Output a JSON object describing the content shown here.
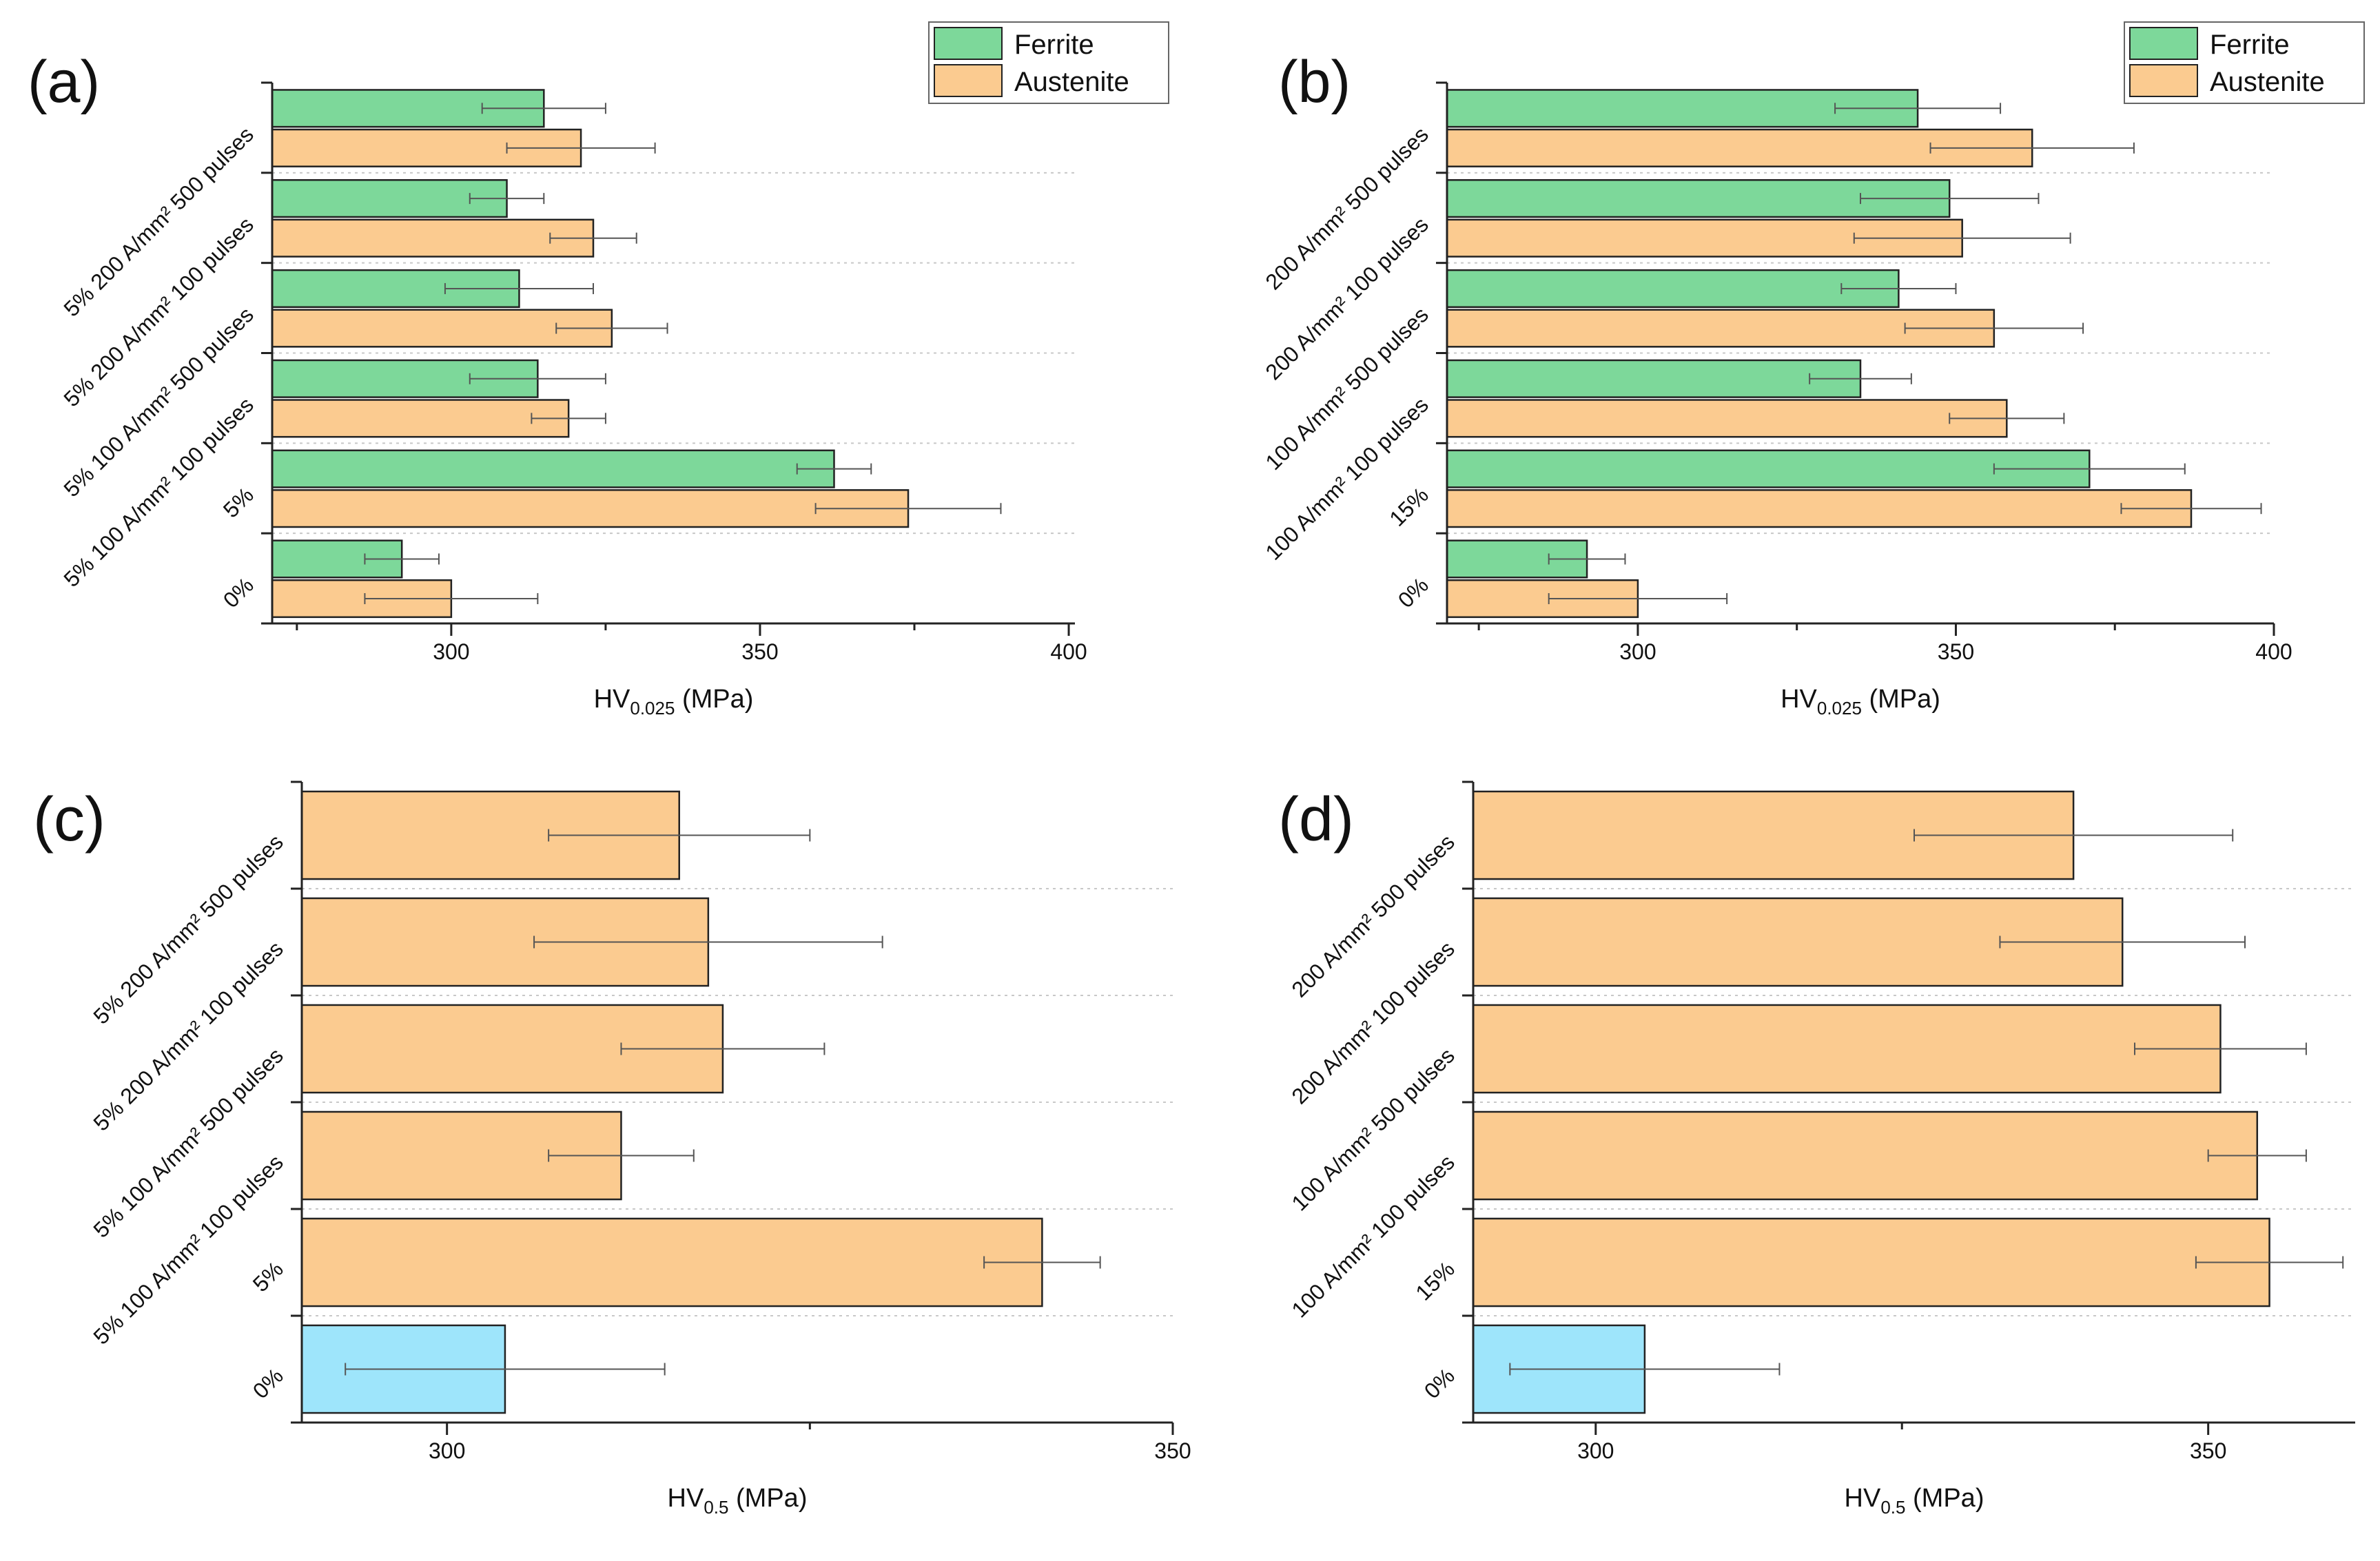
{
  "figure": {
    "legend": {
      "ferrite": "Ferrite",
      "austenite": "Austenite"
    },
    "colors": {
      "ferrite": "#7dd89a",
      "austenite": "#fbcb90",
      "baseline": "#9ee5fb",
      "axis": "#222222",
      "grid": "#c8c8c8",
      "error": "#555555"
    }
  },
  "chart_data": [
    {
      "panel": "(a)",
      "type": "bar",
      "orientation": "horizontal",
      "title": "",
      "xlabel_main": "HV",
      "xlabel_sub": "0.025",
      "xlabel_unit": " (MPa)",
      "xlim": [
        271,
        401
      ],
      "xticks": [
        300,
        350,
        400
      ],
      "grid": "dotted separators between groups",
      "legend_position": "top-right",
      "categories": [
        "0%",
        "5%",
        "5% 100 A/mm² 100 pulses",
        "5% 100 A/mm² 500 pulses",
        "5% 200 A/mm² 100 pulses",
        "5% 200 A/mm² 500 pulses"
      ],
      "series": [
        {
          "name": "Ferrite",
          "color_key": "ferrite",
          "values": [
            292,
            362,
            314,
            311,
            309,
            315
          ],
          "errors": [
            6,
            6,
            11,
            12,
            6,
            10
          ]
        },
        {
          "name": "Austenite",
          "color_key": "austenite",
          "values": [
            300,
            374,
            319,
            326,
            323,
            321
          ],
          "errors": [
            14,
            15,
            6,
            9,
            7,
            12
          ]
        }
      ]
    },
    {
      "panel": "(b)",
      "type": "bar",
      "orientation": "horizontal",
      "title": "",
      "xlabel_main": "HV",
      "xlabel_sub": "0.025",
      "xlabel_unit": " (MPa)",
      "xlim": [
        270,
        400
      ],
      "xticks": [
        300,
        350,
        400
      ],
      "grid": "dotted separators between groups",
      "legend_position": "top-right",
      "categories": [
        "0%",
        "15%",
        "100 A/mm² 100 pulses",
        "100 A/mm² 500 pulses",
        "200 A/mm² 100 pulses",
        "200 A/mm² 500 pulses"
      ],
      "series": [
        {
          "name": "Ferrite",
          "color_key": "ferrite",
          "values": [
            292,
            371,
            335,
            341,
            349,
            344
          ],
          "errors": [
            6,
            15,
            8,
            9,
            14,
            13
          ]
        },
        {
          "name": "Austenite",
          "color_key": "austenite",
          "values": [
            300,
            387,
            358,
            356,
            351,
            362
          ],
          "errors": [
            14,
            11,
            9,
            14,
            17,
            16
          ]
        }
      ]
    },
    {
      "panel": "(c)",
      "type": "bar",
      "orientation": "horizontal",
      "title": "",
      "xlabel_main": "HV",
      "xlabel_sub": "0.5",
      "xlabel_unit": " (MPa)",
      "xlim": [
        290,
        350
      ],
      "xticks": [
        300,
        350
      ],
      "grid": "dotted separators between groups",
      "categories": [
        "0%",
        "5%",
        "5% 100 A/mm² 100 pulses",
        "5% 100 A/mm² 500 pulses",
        "5% 200 A/mm² 100 pulses",
        "5% 200 A/mm² 500 pulses"
      ],
      "series": [
        {
          "name": "HV0.5",
          "values": [
            304,
            341,
            312,
            319,
            318,
            316
          ],
          "errors": [
            11,
            4,
            5,
            7,
            12,
            9
          ],
          "color_keys": [
            "baseline",
            "austenite",
            "austenite",
            "austenite",
            "austenite",
            "austenite"
          ]
        }
      ]
    },
    {
      "panel": "(d)",
      "type": "bar",
      "orientation": "horizontal",
      "title": "",
      "xlabel_main": "HV",
      "xlabel_sub": "0.5",
      "xlabel_unit": " (MPa)",
      "xlim": [
        290,
        362
      ],
      "xticks": [
        300,
        350
      ],
      "grid": "dotted separators between groups",
      "categories": [
        "0%",
        "15%",
        "100 A/mm² 100 pulses",
        "100 A/mm² 500 pulses",
        "200 A/mm² 100 pulses",
        "200 A/mm² 500 pulses"
      ],
      "series": [
        {
          "name": "HV0.5",
          "values": [
            304,
            355,
            354,
            351,
            343,
            339
          ],
          "errors": [
            11,
            6,
            4,
            7,
            10,
            13
          ],
          "color_keys": [
            "baseline",
            "austenite",
            "austenite",
            "austenite",
            "austenite",
            "austenite"
          ]
        }
      ]
    }
  ]
}
